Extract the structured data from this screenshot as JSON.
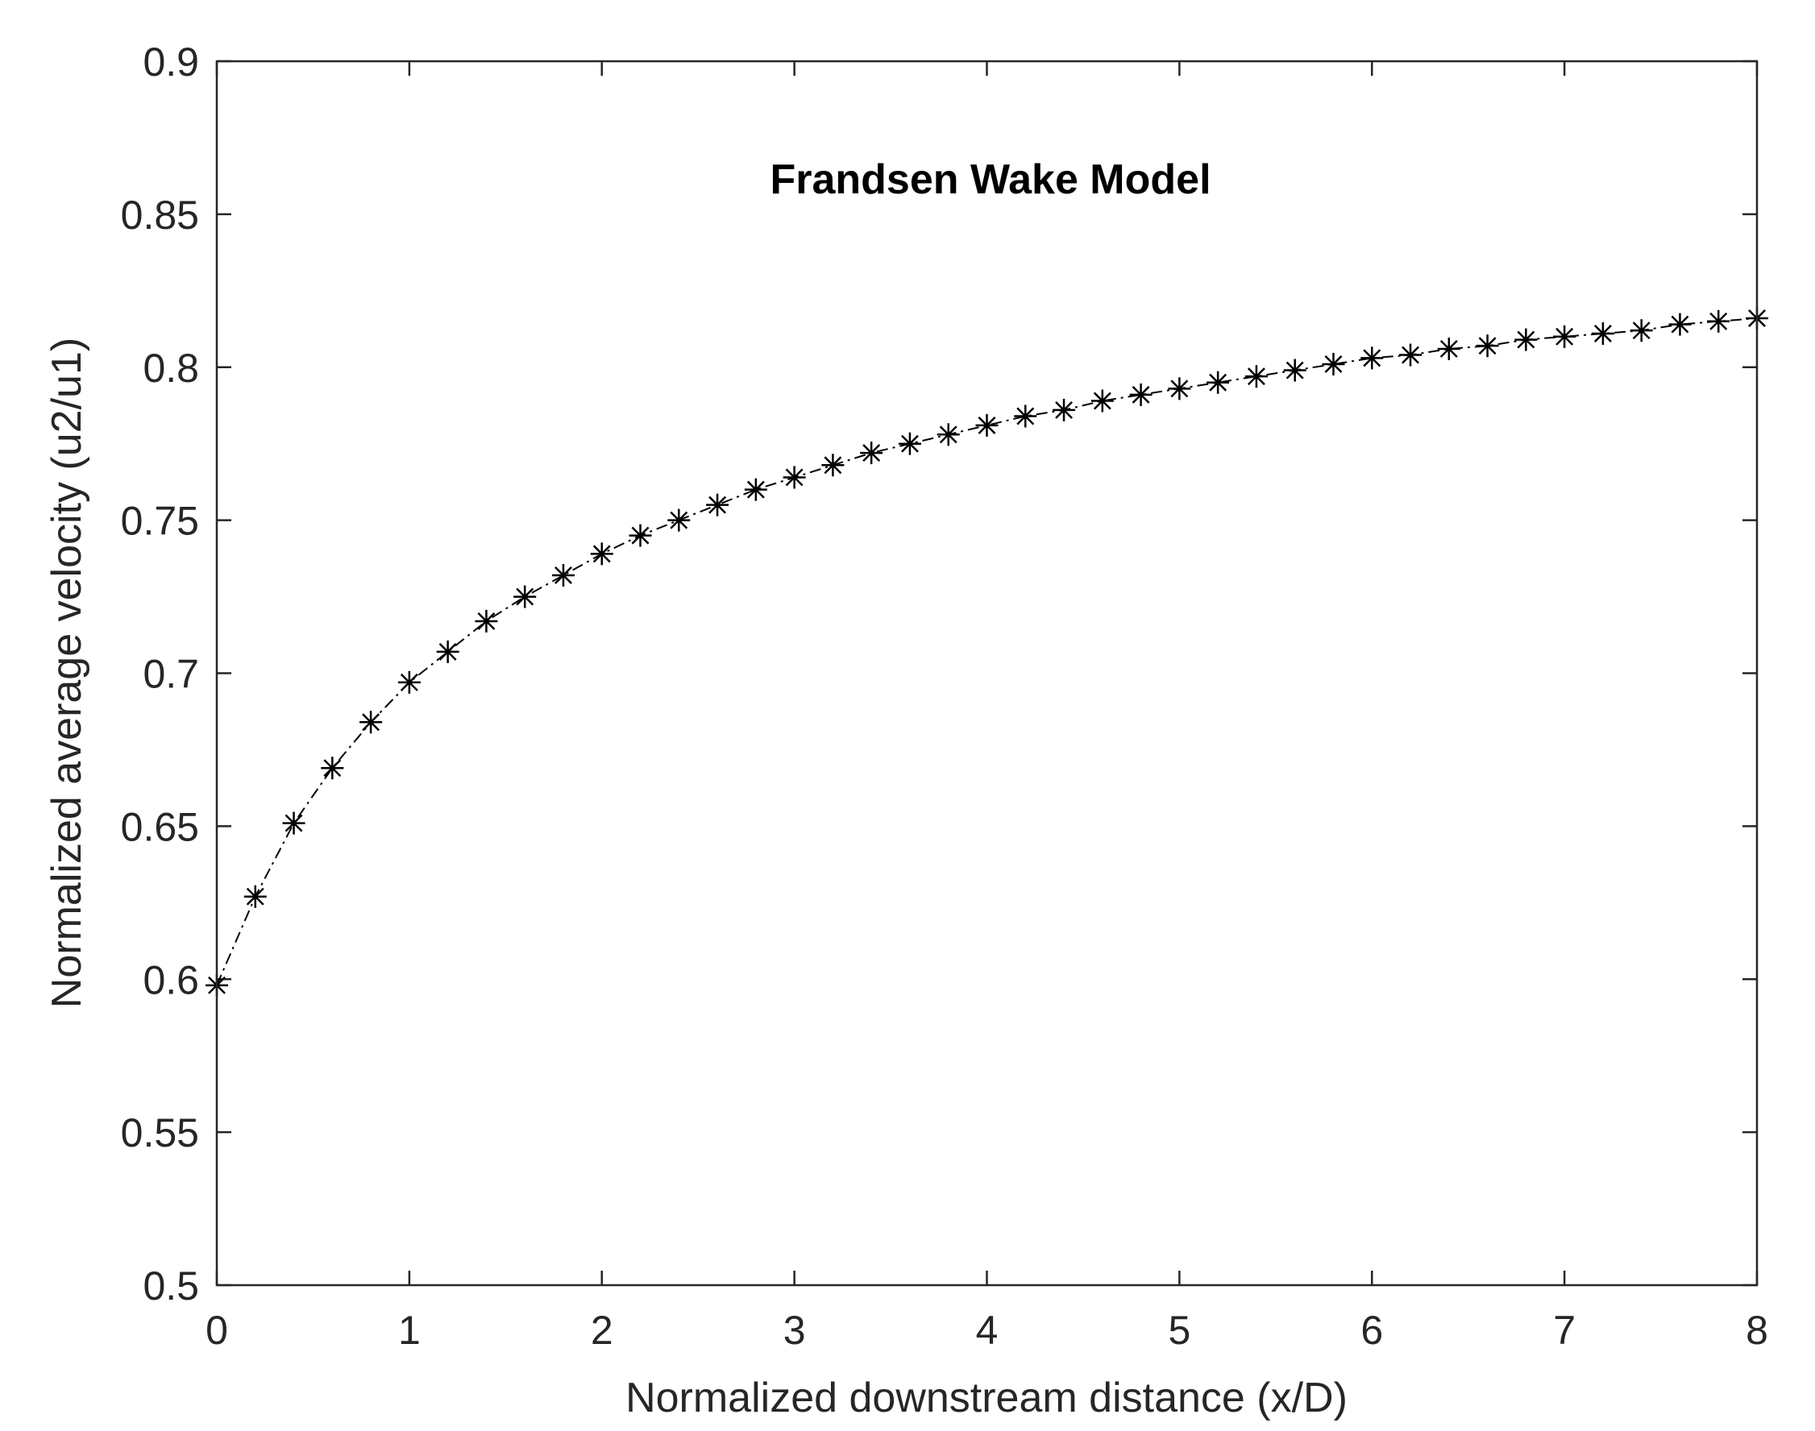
{
  "chart_data": {
    "type": "line",
    "title": "Frandsen Wake Model",
    "xlabel": "Normalized downstream distance (x/D)",
    "ylabel": "Normalized average velocity (u2/u1)",
    "xlim": [
      0,
      8
    ],
    "ylim": [
      0.5,
      0.9
    ],
    "xticks": [
      "0",
      "1",
      "2",
      "3",
      "4",
      "5",
      "6",
      "7",
      "8"
    ],
    "yticks": [
      "0.5",
      "0.55",
      "0.6",
      "0.65",
      "0.7",
      "0.75",
      "0.8",
      "0.85",
      "0.9"
    ],
    "grid": false,
    "line_style": "dash-dot",
    "marker": "asterisk",
    "color": "#000000",
    "series": [
      {
        "x": [
          0,
          0.2,
          0.4,
          0.6,
          0.8,
          1.0,
          1.2,
          1.4,
          1.6,
          1.8,
          2.0,
          2.2,
          2.4,
          2.6,
          2.8,
          3.0,
          3.2,
          3.4,
          3.6,
          3.8,
          4.0,
          4.2,
          4.4,
          4.6,
          4.8,
          5.0,
          5.2,
          5.4,
          5.6,
          5.8,
          6.0,
          6.2,
          6.4,
          6.6,
          6.8,
          7.0,
          7.2,
          7.4,
          7.6,
          7.8,
          8.0
        ],
        "y": [
          0.598,
          0.627,
          0.651,
          0.669,
          0.684,
          0.697,
          0.707,
          0.717,
          0.725,
          0.732,
          0.739,
          0.745,
          0.75,
          0.755,
          0.76,
          0.764,
          0.768,
          0.772,
          0.775,
          0.778,
          0.781,
          0.784,
          0.786,
          0.789,
          0.791,
          0.793,
          0.795,
          0.797,
          0.799,
          0.801,
          0.803,
          0.804,
          0.806,
          0.807,
          0.809,
          0.81,
          0.811,
          0.812,
          0.814,
          0.815,
          0.816
        ]
      }
    ]
  }
}
